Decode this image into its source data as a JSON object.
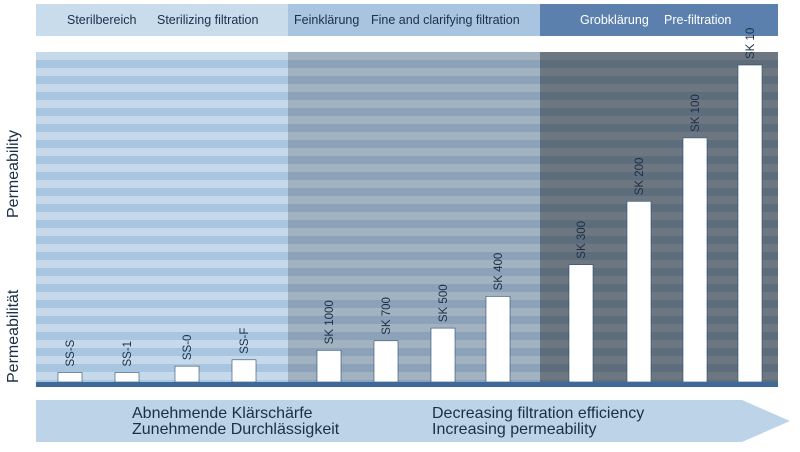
{
  "header": {
    "zones": [
      {
        "de": "Sterilbereich",
        "en": "Sterilizing filtration"
      },
      {
        "de": "Feinklärung",
        "en": "Fine and clarifying filtration"
      },
      {
        "de": "Grobklärung",
        "en": "Pre-filtration"
      }
    ]
  },
  "y_labels": {
    "en": "Permeability",
    "de": "Permeabilität"
  },
  "arrow": {
    "left_line1": "Abnehmende Klärschärfe",
    "left_line2": "Zunehmende Durchlässigkeit",
    "right_line1": "Decreasing filtration efficiency",
    "right_line2": "Increasing permeability"
  },
  "colors": {
    "zone1": "#c8dcec",
    "zone2": "#a9c4e0",
    "zone3": "#5b80ad",
    "stripe_light": "#c6d9ea",
    "stripe_dark": "#a9c6e0",
    "baseline": "#3e6a9a",
    "bar_fill": "#ffffff",
    "bar_stroke": "#2b4c72"
  },
  "chart_data": {
    "type": "bar",
    "categories": [
      "SS-S",
      "SS-1",
      "SS-0",
      "SS-F",
      "SK 1000",
      "SK 700",
      "SK 500",
      "SK 400",
      "SK 300",
      "SK 200",
      "SK 100",
      "SK 10"
    ],
    "values": [
      3,
      3,
      5,
      7,
      10,
      13,
      17,
      27,
      37,
      57,
      77,
      100
    ],
    "groups": [
      {
        "label_index": 0,
        "members": [
          0,
          1,
          2,
          3
        ]
      },
      {
        "label_index": 1,
        "members": [
          4,
          5,
          6,
          7
        ]
      },
      {
        "label_index": 2,
        "members": [
          8,
          9,
          10,
          11
        ]
      }
    ],
    "ylabel": "Permeability / Permeabilität",
    "ylim": [
      0,
      100
    ],
    "grid": true
  }
}
